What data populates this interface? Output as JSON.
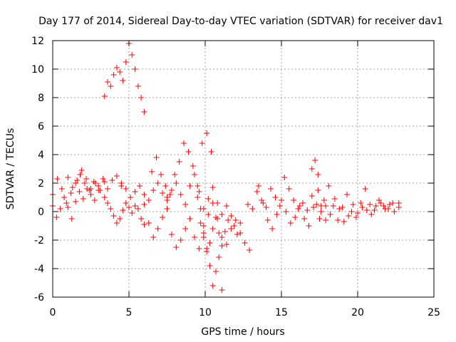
{
  "chart_data": {
    "type": "scatter",
    "title": "Day 177 of 2014, Sidereal Day-to-day VTEC variation (SDTVAR) for receiver dav1",
    "xlabel": "GPS time / hours",
    "ylabel": "SDTVAR / TECUs",
    "xlim": [
      0,
      25
    ],
    "ylim": [
      -6,
      12
    ],
    "xticks": [
      0,
      5,
      10,
      15,
      20,
      25
    ],
    "yticks": [
      -6,
      -4,
      -2,
      0,
      2,
      4,
      6,
      8,
      10,
      12
    ],
    "grid": true,
    "marker": "+",
    "marker_color": "#ff0000",
    "series": [
      {
        "name": "SDTVAR",
        "traces": [
          {
            "x": [
              0.0,
              0.3,
              0.6,
              0.9,
              1.2,
              1.5,
              1.8,
              2.1,
              2.4,
              2.7,
              3.0,
              3.3,
              3.6,
              3.9,
              4.2,
              4.5
            ],
            "y": [
              1.2,
              2.3,
              1.6,
              0.6,
              1.3,
              2.0,
              2.6,
              2.0,
              1.5,
              2.1,
              1.8,
              2.3,
              1.6,
              2.2,
              2.5,
              1.8
            ]
          },
          {
            "x": [
              0.0,
              0.25,
              0.5,
              0.75,
              1.0,
              1.25,
              1.5,
              1.75,
              2.0,
              2.25,
              2.5,
              2.75,
              3.0
            ],
            "y": [
              0.4,
              -0.4,
              0.2,
              1.0,
              0.3,
              -0.5,
              0.7,
              1.4,
              0.9,
              1.6,
              1.2,
              0.8,
              1.5
            ]
          },
          {
            "x": [
              1.0,
              1.3,
              1.6,
              1.9,
              2.2,
              2.5,
              2.8,
              3.1,
              3.4
            ],
            "y": [
              2.4,
              1.7,
              2.2,
              2.9,
              2.3,
              1.6,
              2.0,
              1.5,
              2.1
            ]
          },
          {
            "x": [
              3.4,
              3.6,
              3.8,
              4.0,
              4.2,
              4.4,
              4.6,
              4.8,
              5.0,
              5.2,
              5.4,
              5.6,
              5.8,
              6.0
            ],
            "y": [
              1.0,
              0.6,
              0.2,
              -0.3,
              -0.8,
              -0.5,
              0.1,
              0.6,
              0.3,
              -0.1,
              0.4,
              0.2,
              -0.5,
              -0.9
            ]
          },
          {
            "x": [
              3.4,
              3.6,
              3.8,
              4.0,
              4.2,
              4.4,
              4.6,
              4.8,
              5.0,
              5.2,
              5.4,
              5.6,
              5.8,
              6.0
            ],
            "y": [
              8.1,
              9.1,
              8.8,
              9.6,
              10.1,
              9.8,
              9.2,
              10.5,
              11.8,
              11.0,
              10.0,
              8.8,
              8.0,
              7.0
            ]
          },
          {
            "x": [
              4.5,
              4.8,
              5.1,
              5.4,
              5.7,
              6.0,
              6.3,
              6.6,
              6.9,
              7.2,
              7.5
            ],
            "y": [
              2.0,
              1.6,
              1.0,
              1.4,
              1.8,
              1.2,
              0.8,
              1.5,
              2.0,
              1.3,
              1.0
            ]
          },
          {
            "x": [
              6.0,
              6.3,
              6.6,
              6.9,
              7.2,
              7.5,
              7.8,
              8.1,
              8.4,
              8.7,
              9.0,
              9.3,
              9.6,
              9.9,
              10.2,
              10.5,
              10.8,
              11.1,
              11.4,
              11.7,
              12.0,
              12.3,
              12.6,
              12.9
            ],
            "y": [
              0.5,
              -0.8,
              -1.8,
              -1.2,
              -0.4,
              0.2,
              -1.6,
              -2.5,
              -2.0,
              -1.2,
              -0.5,
              -1.8,
              -2.6,
              -1.5,
              -0.2,
              0.6,
              -0.5,
              -1.8,
              -2.3,
              -1.2,
              -0.6,
              -1.5,
              -2.2,
              -2.7
            ]
          },
          {
            "x": [
              6.5,
              6.8,
              7.1,
              7.4,
              7.7,
              8.0,
              8.3,
              8.6,
              8.9,
              9.2,
              9.5,
              9.8,
              10.1,
              10.4
            ],
            "y": [
              2.8,
              3.8,
              2.6,
              1.8,
              1.2,
              2.6,
              3.5,
              4.8,
              4.2,
              3.2,
              1.8,
              4.8,
              5.5,
              4.2
            ]
          },
          {
            "x": [
              7.5,
              7.8,
              8.1,
              8.4,
              8.7,
              9.0,
              9.3,
              9.6,
              9.9,
              10.2,
              10.5,
              10.8,
              11.1,
              11.4
            ],
            "y": [
              0.8,
              1.5,
              2.0,
              1.2,
              0.5,
              1.8,
              2.6,
              1.4,
              0.2,
              0.9,
              1.7,
              0.6,
              -0.2,
              0.4
            ]
          },
          {
            "x": [
              9.5,
              9.7,
              9.9,
              10.1,
              10.3,
              10.5,
              10.7,
              10.9,
              11.1
            ],
            "y": [
              1.0,
              0.2,
              -1.0,
              -2.6,
              -3.8,
              -5.2,
              -4.2,
              -3.2,
              -5.5
            ]
          },
          {
            "x": [
              9.7,
              9.9,
              10.1,
              10.3,
              10.5,
              10.7,
              10.9,
              11.1,
              11.3,
              11.5,
              11.7,
              11.9,
              12.1,
              12.3
            ],
            "y": [
              -0.8,
              -1.8,
              -2.8,
              -2.2,
              -1.2,
              -0.4,
              -1.5,
              -2.4,
              -1.4,
              -0.6,
              -0.3,
              -1.0,
              -1.6,
              -0.8
            ]
          },
          {
            "x": [
              12.8,
              13.1,
              13.4,
              13.7,
              14.0,
              14.3,
              14.6,
              14.9,
              15.2,
              15.5,
              15.8,
              16.1,
              16.4,
              16.7,
              17.0,
              17.3,
              17.6,
              17.9
            ],
            "y": [
              0.5,
              0.2,
              1.4,
              0.8,
              0.3,
              1.6,
              1.0,
              0.4,
              2.4,
              1.6,
              0.8,
              0.2,
              0.6,
              0.1,
              1.1,
              0.5,
              0.0,
              0.4
            ]
          },
          {
            "x": [
              13.5,
              13.8,
              14.1,
              14.4,
              14.7,
              15.0,
              15.3,
              15.6,
              15.9,
              16.2,
              16.5,
              16.8,
              17.1,
              17.4
            ],
            "y": [
              1.8,
              0.6,
              -0.6,
              -1.2,
              -0.2,
              0.8,
              0.0,
              -0.8,
              -0.4,
              0.4,
              -0.5,
              -1.0,
              0.3,
              1.5
            ]
          },
          {
            "x": [
              17.0,
              17.2,
              17.4
            ],
            "y": [
              3.0,
              3.6,
              2.6
            ]
          },
          {
            "x": [
              17.5,
              17.8,
              18.1,
              18.4,
              18.7,
              19.0,
              19.3,
              19.6,
              19.9,
              20.2,
              20.5,
              20.8,
              21.1,
              21.4,
              21.7,
              22.0,
              22.3,
              22.7
            ],
            "y": [
              -0.5,
              0.8,
              1.8,
              0.4,
              -0.6,
              0.3,
              1.2,
              0.0,
              -0.4,
              0.6,
              1.6,
              0.5,
              0.1,
              0.8,
              0.4,
              0.2,
              0.6,
              0.3
            ]
          },
          {
            "x": [
              17.6,
              17.9,
              18.2,
              18.5,
              18.8,
              19.1,
              19.4,
              19.7,
              20.0,
              20.3,
              20.6,
              20.9,
              21.2,
              21.5,
              21.8,
              22.1,
              22.4,
              22.7
            ],
            "y": [
              0.4,
              -0.6,
              -0.2,
              0.9,
              0.2,
              -0.7,
              -0.3,
              0.5,
              -0.1,
              0.3,
              0.1,
              -0.2,
              0.4,
              0.6,
              0.2,
              0.5,
              0.0,
              0.6
            ]
          }
        ]
      }
    ]
  }
}
